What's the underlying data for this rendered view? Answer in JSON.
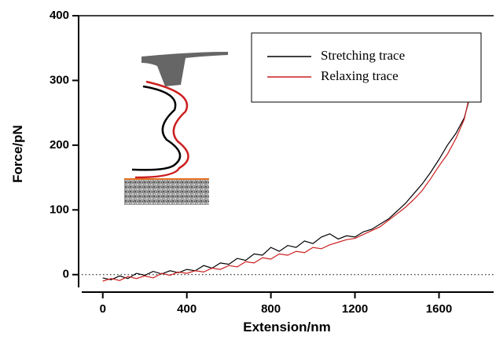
{
  "chart_data": {
    "type": "line",
    "xlabel": "Extension/nm",
    "ylabel": "Force/pN",
    "x": [
      0,
      40,
      80,
      120,
      160,
      200,
      240,
      280,
      320,
      360,
      400,
      440,
      480,
      520,
      560,
      600,
      640,
      680,
      720,
      760,
      800,
      840,
      880,
      920,
      960,
      1000,
      1040,
      1080,
      1120,
      1160,
      1200,
      1240,
      1280,
      1320,
      1360,
      1400,
      1440,
      1480,
      1520,
      1560,
      1600,
      1640,
      1680,
      1720,
      1760
    ],
    "series": [
      {
        "name": "Stretching trace",
        "color": "#000000",
        "values": [
          -5,
          -8,
          -2,
          -6,
          2,
          -1,
          5,
          1,
          6,
          3,
          8,
          6,
          14,
          10,
          18,
          16,
          25,
          22,
          32,
          30,
          42,
          36,
          45,
          42,
          52,
          48,
          58,
          63,
          55,
          60,
          58,
          66,
          70,
          78,
          86,
          98,
          110,
          125,
          140,
          158,
          178,
          200,
          218,
          242,
          290
        ]
      },
      {
        "name": "Relaxing trace",
        "color": "#cc1f1f",
        "values": [
          -10,
          -6,
          -9,
          -3,
          -6,
          -2,
          -5,
          2,
          -1,
          4,
          2,
          6,
          4,
          10,
          8,
          14,
          12,
          20,
          18,
          26,
          24,
          32,
          30,
          36,
          34,
          42,
          40,
          46,
          50,
          54,
          56,
          62,
          68,
          74,
          84,
          94,
          104,
          116,
          130,
          148,
          168,
          186,
          210,
          240,
          298
        ]
      }
    ],
    "xlim": [
      -100,
      1860
    ],
    "xticks": [
      0,
      400,
      800,
      1200,
      1600
    ],
    "ylim": [
      -27,
      400
    ],
    "yticks": [
      0,
      100,
      200,
      300,
      400
    ],
    "zero_line": true,
    "legend": "upper right"
  }
}
